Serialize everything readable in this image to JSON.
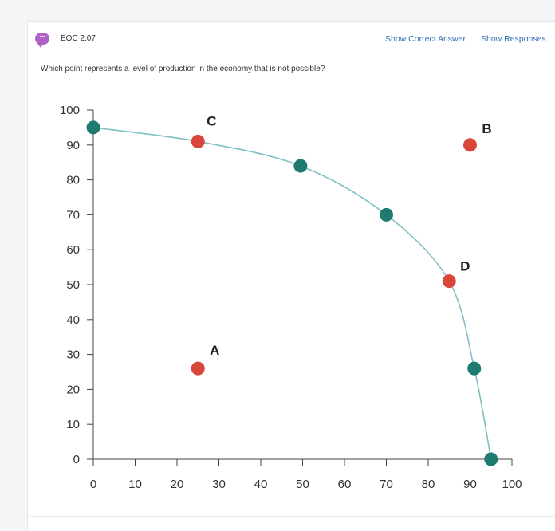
{
  "header": {
    "badge_icon": "chat-bubble-icon",
    "badge_color": "#b061c3",
    "title": "EOC 2.07",
    "show_correct_label": "Show Correct Answer",
    "show_responses_label": "Show Responses"
  },
  "question": {
    "text": "Which point represents a level of production in the economy that is not possible?"
  },
  "chart_data": {
    "type": "line",
    "xlim": [
      0,
      100
    ],
    "ylim": [
      0,
      100
    ],
    "x_ticks": [
      0,
      10,
      20,
      30,
      40,
      50,
      60,
      70,
      80,
      90,
      100
    ],
    "y_ticks": [
      0,
      10,
      20,
      30,
      40,
      50,
      60,
      70,
      80,
      90,
      100
    ],
    "grid": false,
    "curve_color": "#7cc1c4",
    "frontier_point_color": "#1f7a70",
    "labeled_point_color": "#d9473a",
    "series": [
      {
        "values": [
          {
            "x": 0,
            "y": 95
          },
          {
            "x": 25,
            "y": 91
          },
          {
            "x": 49.5,
            "y": 84
          },
          {
            "x": 70,
            "y": 70
          },
          {
            "x": 85,
            "y": 51
          },
          {
            "x": 91,
            "y": 26
          },
          {
            "x": 95,
            "y": 0
          }
        ]
      }
    ],
    "frontier_points": [
      {
        "x": 0,
        "y": 95
      },
      {
        "x": 49.5,
        "y": 84
      },
      {
        "x": 70,
        "y": 70
      },
      {
        "x": 91,
        "y": 26
      },
      {
        "x": 95,
        "y": 0
      }
    ],
    "labeled_points": [
      {
        "label": "A",
        "x": 25,
        "y": 26
      },
      {
        "label": "B",
        "x": 90,
        "y": 90
      },
      {
        "label": "C",
        "x": 25,
        "y": 91
      },
      {
        "label": "D",
        "x": 85,
        "y": 51
      }
    ]
  }
}
